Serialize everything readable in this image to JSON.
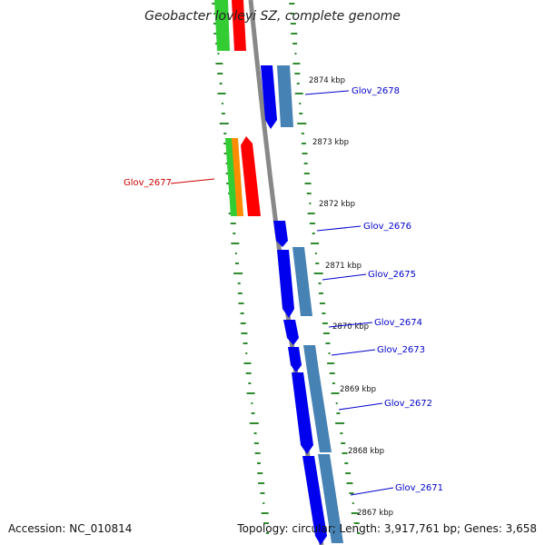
{
  "title": "Geobacter lovleyi SZ, complete genome",
  "footer": {
    "accession": "Accession: NC_010814",
    "topology": "Topology: circular; Length: 3,917,761 bp; Genes: 3,658"
  },
  "colors": {
    "forward_cds": "#0000ee",
    "forward_cds_alt": "#4682b4",
    "reverse_red": "#ff0000",
    "reverse_orange": "#ff8c00",
    "reverse_green": "#33cc33",
    "gc_dashes": "#2e8b2e",
    "backbone": "#888888",
    "forward_label": "#0000cc",
    "reverse_label": "#cc0000"
  },
  "scale_labels": [
    "2874 kbp",
    "2873 kbp",
    "2872 kbp",
    "2871 kbp",
    "2870 kbp",
    "2869 kbp",
    "2868 kbp",
    "2867 kbp"
  ],
  "gene_labels": {
    "glov_2678": "Glov_2678",
    "glov_2677": "Glov_2677",
    "glov_2676": "Glov_2676",
    "glov_2675": "Glov_2675",
    "glov_2674": "Glov_2674",
    "glov_2673": "Glov_2673",
    "glov_2672": "Glov_2672",
    "glov_2671": "Glov_2671"
  }
}
